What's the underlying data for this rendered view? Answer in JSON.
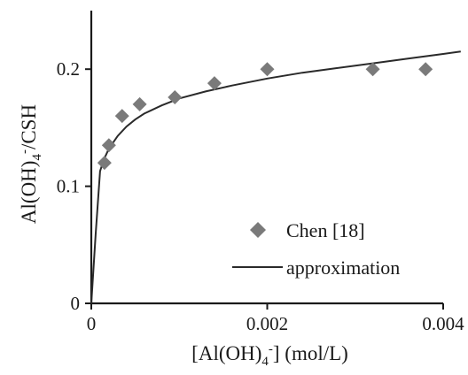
{
  "chart_data": {
    "type": "scatter",
    "xlabel_parts": [
      "[Al(OH)",
      "4",
      "-",
      "] (mol/L)"
    ],
    "ylabel_parts": [
      "Al(OH)",
      "4",
      "-",
      "/CSH"
    ],
    "xlim": [
      0,
      0.004
    ],
    "ylim": [
      0,
      0.25
    ],
    "x_ticks": [
      {
        "value": 0,
        "label": "0"
      },
      {
        "value": 0.002,
        "label": "0.002"
      },
      {
        "value": 0.004,
        "label": "0.004"
      }
    ],
    "y_ticks": [
      {
        "value": 0,
        "label": "0"
      },
      {
        "value": 0.1,
        "label": "0.1"
      },
      {
        "value": 0.2,
        "label": "0.2"
      }
    ],
    "series": [
      {
        "name": "Chen [18]",
        "kind": "scatter",
        "marker": "diamond",
        "color": "#7a7a7a",
        "x": [
          0.00015,
          0.0002,
          0.00035,
          0.00055,
          0.00095,
          0.0014,
          0.002,
          0.0032,
          0.0038
        ],
        "y": [
          0.12,
          0.135,
          0.16,
          0.17,
          0.176,
          0.188,
          0.2,
          0.2,
          0.2
        ]
      },
      {
        "name": "approximation",
        "kind": "line",
        "color": "#2a2a2a",
        "x": [
          0,
          5e-05,
          0.0001,
          0.00015,
          0.0002,
          0.0003,
          0.0004,
          0.0005,
          0.0006,
          0.0008,
          0.001,
          0.0013,
          0.0016,
          0.002,
          0.0024,
          0.0028,
          0.0032,
          0.0036,
          0.004,
          0.0042
        ],
        "y": [
          0,
          0.06,
          0.113,
          0.124,
          0.132,
          0.143,
          0.151,
          0.157,
          0.162,
          0.169,
          0.175,
          0.181,
          0.186,
          0.192,
          0.197,
          0.201,
          0.205,
          0.209,
          0.213,
          0.215
        ]
      }
    ],
    "legend": {
      "position": "lower-right",
      "entries": [
        {
          "label": "Chen [18]",
          "marker": "diamond"
        },
        {
          "label": "approximation",
          "marker": "line"
        }
      ]
    },
    "grid": false
  }
}
